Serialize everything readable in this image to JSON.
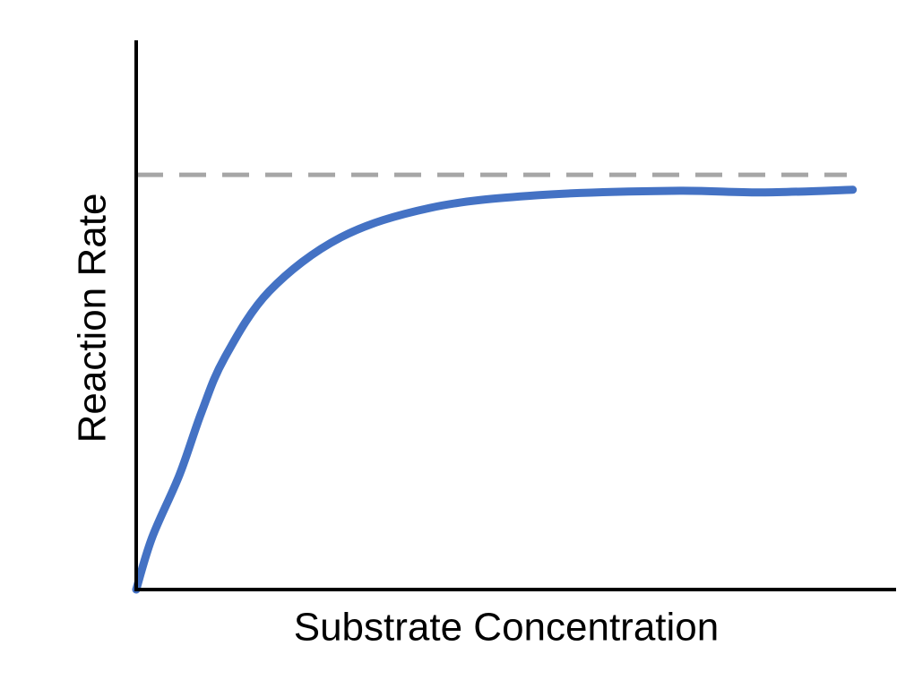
{
  "chart_data": {
    "type": "line",
    "x_label": "Substrate Concentration",
    "y_label": "Reaction Rate",
    "xlim": [
      0,
      100
    ],
    "ylim": [
      0,
      100
    ],
    "max_rate_line": 75.5,
    "max_rate_line_color": "#a6a6a6",
    "series": [
      {
        "color": "#4472c4",
        "x": [
          0,
          2.1,
          5.7,
          8.6,
          11.6,
          17.5,
          26.9,
          38.7,
          52.8,
          70.5,
          82.3,
          94.3
        ],
        "values": [
          0,
          9.5,
          20.9,
          32.3,
          42.1,
          54.3,
          64.1,
          69.5,
          71.8,
          72.6,
          72.3,
          72.8
        ]
      }
    ]
  }
}
